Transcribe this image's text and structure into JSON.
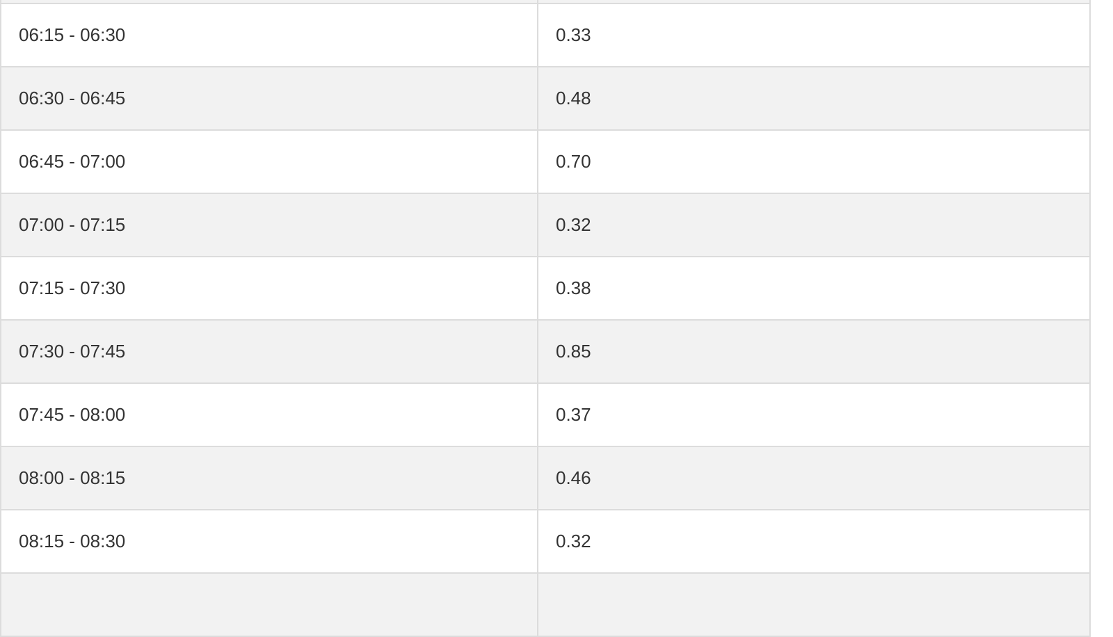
{
  "table": {
    "rows": [
      {
        "time": "",
        "value": ""
      },
      {
        "time": "06:15 - 06:30",
        "value": "0.33"
      },
      {
        "time": "06:30 - 06:45",
        "value": "0.48"
      },
      {
        "time": "06:45 - 07:00",
        "value": "0.70"
      },
      {
        "time": "07:00 - 07:15",
        "value": "0.32"
      },
      {
        "time": "07:15 - 07:30",
        "value": "0.38"
      },
      {
        "time": "07:30 - 07:45",
        "value": "0.85"
      },
      {
        "time": "07:45 - 08:00",
        "value": "0.37"
      },
      {
        "time": "08:00 - 08:15",
        "value": "0.46"
      },
      {
        "time": "08:15 - 08:30",
        "value": "0.32"
      },
      {
        "time": "",
        "value": ""
      }
    ]
  }
}
